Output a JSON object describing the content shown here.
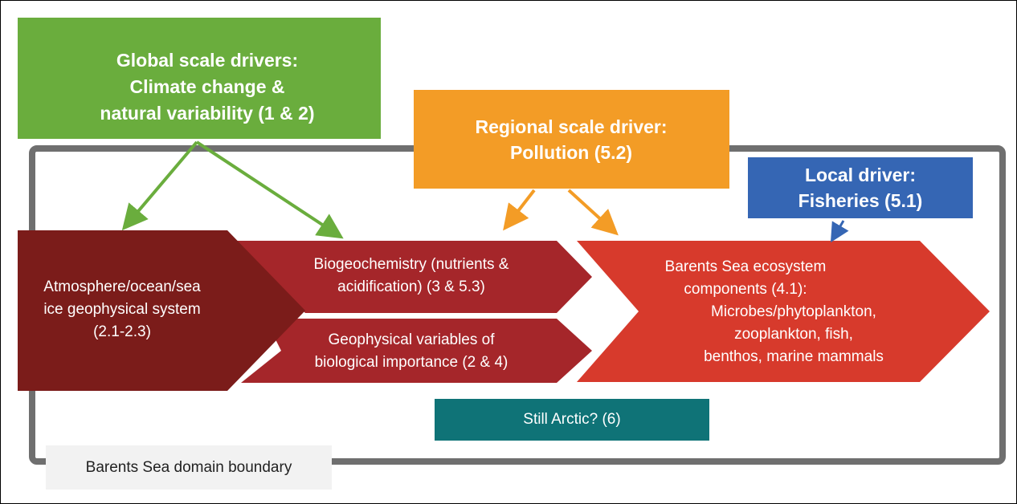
{
  "nodes": [
    {
      "id": "global",
      "lines": [
        "Global scale drivers:",
        "Climate change &",
        "natural variability (1 & 2)"
      ]
    },
    {
      "id": "regional",
      "lines": [
        "Regional scale driver:",
        "Pollution (5.2)"
      ]
    },
    {
      "id": "local",
      "lines": [
        "Local driver:",
        "Fisheries (5.1)"
      ]
    },
    {
      "id": "geophysical",
      "lines": [
        "Atmosphere/ocean/sea",
        "ice geophysical system",
        "(2.1-2.3)"
      ]
    },
    {
      "id": "biogeo",
      "lines": [
        "Biogeochemistry (nutrients &",
        "acidification) (3 & 5.3)"
      ]
    },
    {
      "id": "geovars",
      "lines": [
        "Geophysical variables of",
        "biological importance (2 & 4)"
      ]
    },
    {
      "id": "ecosystem",
      "lines": [
        "Barents Sea ecosystem",
        "components (4.1):",
        "Microbes/phytoplankton,",
        "zooplankton, fish,",
        "benthos, marine mammals"
      ]
    },
    {
      "id": "arctic",
      "lines": [
        "Still Arctic? (6)"
      ]
    },
    {
      "id": "boundary",
      "lines": [
        "Barents Sea domain boundary"
      ]
    }
  ]
}
